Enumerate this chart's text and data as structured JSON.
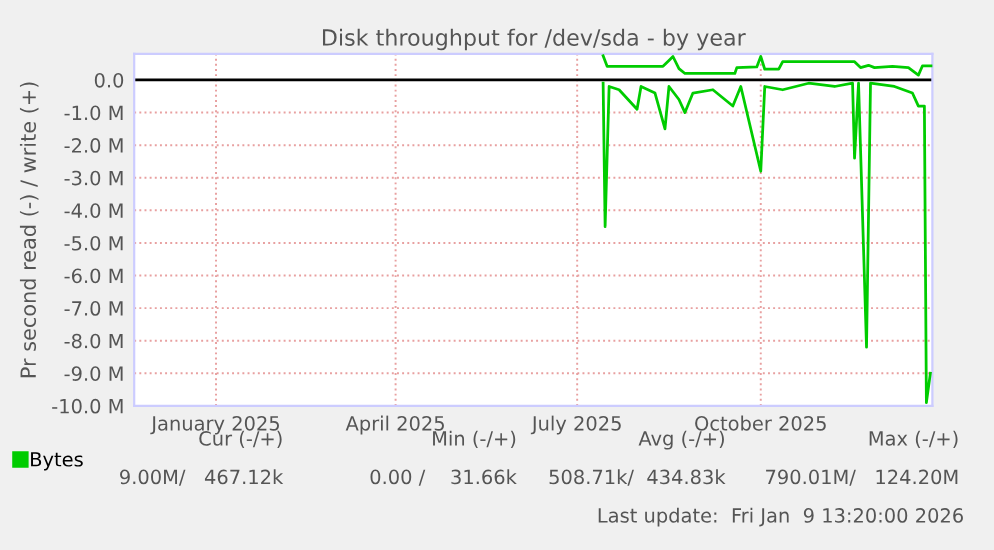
{
  "chart_data": {
    "type": "line",
    "title": "Disk throughput for /dev/sda - by year",
    "ylabel": "Pr second read (-) / write (+)",
    "series": [
      {
        "name": "Bytes",
        "color": "#00cc00",
        "x": [
          "2025-07-28",
          "2025-07-30",
          "2025-08-27",
          "2025-08-30",
          "2025-09-01",
          "2025-09-04",
          "2025-09-07",
          "2025-10-02",
          "2025-10-03",
          "2025-10-13",
          "2025-10-15",
          "2025-10-17",
          "2025-10-24",
          "2025-10-26",
          "2025-12-01",
          "2025-12-04",
          "2025-12-08",
          "2025-12-11",
          "2025-12-20",
          "2025-12-28",
          "2026-01-02",
          "2026-01-04",
          "2026-01-09"
        ],
        "values": [
          0.74,
          0.42,
          0.42,
          0.6,
          0.72,
          0.35,
          0.2,
          0.2,
          0.38,
          0.4,
          0.72,
          0.33,
          0.33,
          0.56,
          0.56,
          0.38,
          0.45,
          0.38,
          0.42,
          0.38,
          0.15,
          0.43,
          0.43
        ]
      },
      {
        "color": "#00cc00",
        "x": [
          "2025-07-28",
          "2025-07-29",
          "2025-07-31",
          "2025-08-05",
          "2025-08-14",
          "2025-08-16",
          "2025-08-23",
          "2025-08-28",
          "2025-08-30",
          "2025-09-04",
          "2025-09-07",
          "2025-09-11",
          "2025-09-21",
          "2025-10-01",
          "2025-10-05",
          "2025-10-15",
          "2025-10-17",
          "2025-10-26",
          "2025-11-08",
          "2025-11-21",
          "2025-11-30",
          "2025-12-01",
          "2025-12-03",
          "2025-12-07",
          "2025-12-09",
          "2025-12-21",
          "2025-12-30",
          "2026-01-02",
          "2026-01-05",
          "2026-01-06",
          "2026-01-08"
        ],
        "values": [
          -0.1,
          -4.5,
          -0.2,
          -0.3,
          -0.9,
          -0.2,
          -0.4,
          -1.5,
          -0.2,
          -0.6,
          -1.0,
          -0.4,
          -0.3,
          -0.8,
          -0.2,
          -2.8,
          -0.2,
          -0.3,
          -0.1,
          -0.2,
          -0.1,
          -2.4,
          -0.1,
          -8.2,
          -0.1,
          -0.2,
          -0.4,
          -0.8,
          -0.8,
          -9.9,
          -9.0
        ]
      }
    ],
    "xlim": [
      "2024-12-05",
      "2026-01-09"
    ],
    "xticks": [
      {
        "value": "2025-01-15",
        "label": "January 2025"
      },
      {
        "value": "2025-04-15",
        "label": "April 2025"
      },
      {
        "value": "2025-07-15",
        "label": "July 2025"
      },
      {
        "value": "2025-10-15",
        "label": "October 2025"
      }
    ],
    "ylim": [
      -10,
      0.8
    ],
    "yticks": [
      {
        "value": -10,
        "label": "-10.0 M"
      },
      {
        "value": -9,
        "label": "-9.0 M"
      },
      {
        "value": -8,
        "label": "-8.0 M"
      },
      {
        "value": -7,
        "label": "-7.0 M"
      },
      {
        "value": -6,
        "label": "-6.0 M"
      },
      {
        "value": -5,
        "label": "-5.0 M"
      },
      {
        "value": -4,
        "label": "-4.0 M"
      },
      {
        "value": -3,
        "label": "-3.0 M"
      },
      {
        "value": -2,
        "label": "-2.0 M"
      },
      {
        "value": -1,
        "label": "-1.0 M"
      },
      {
        "value": 0,
        "label": "0.0"
      }
    ],
    "ref_lines": [
      {
        "axis": "y",
        "value": 0,
        "color": "#000000"
      }
    ],
    "grid": true,
    "legend": "bottom left",
    "annotations": [
      "Cur (-/+)",
      "Min (-/+)",
      "Avg (-/+)",
      "Max (-/+)",
      "9.00M/   467.12k",
      "0.00 /    31.66k",
      "508.71k/  434.83k",
      "790.01M/   124.20M",
      "Last update:  Fri Jan  9 13:20:00 2026"
    ]
  }
}
